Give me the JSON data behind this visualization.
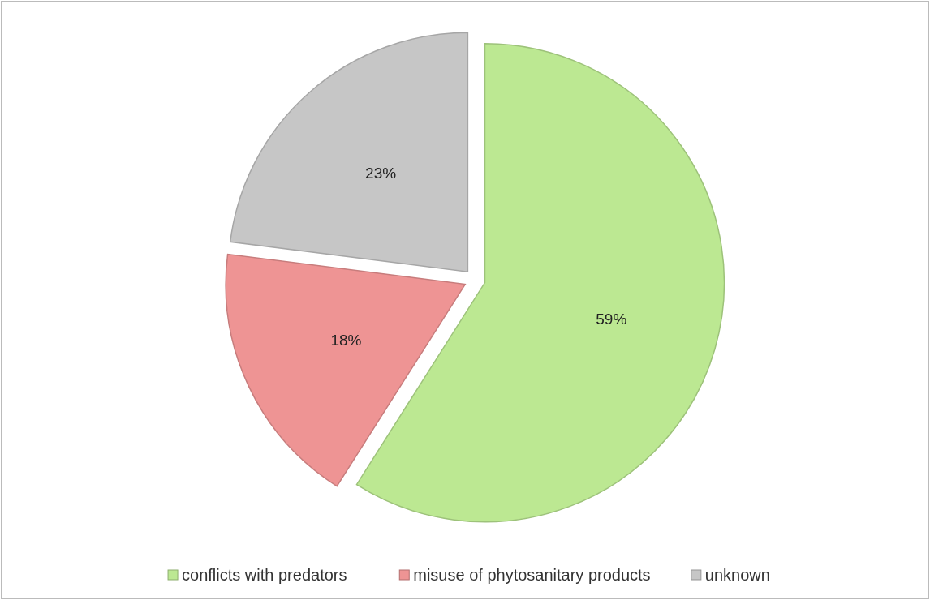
{
  "chart_data": {
    "type": "pie",
    "categories": [
      "conflicts with predators",
      "misuse of phytosanitary products",
      "unknown"
    ],
    "values": [
      59,
      18,
      23
    ],
    "value_labels": [
      "59%",
      "18%",
      "23%"
    ],
    "colors": [
      "#bce892",
      "#ee9494",
      "#c6c6c6"
    ],
    "legend": "bottom"
  }
}
